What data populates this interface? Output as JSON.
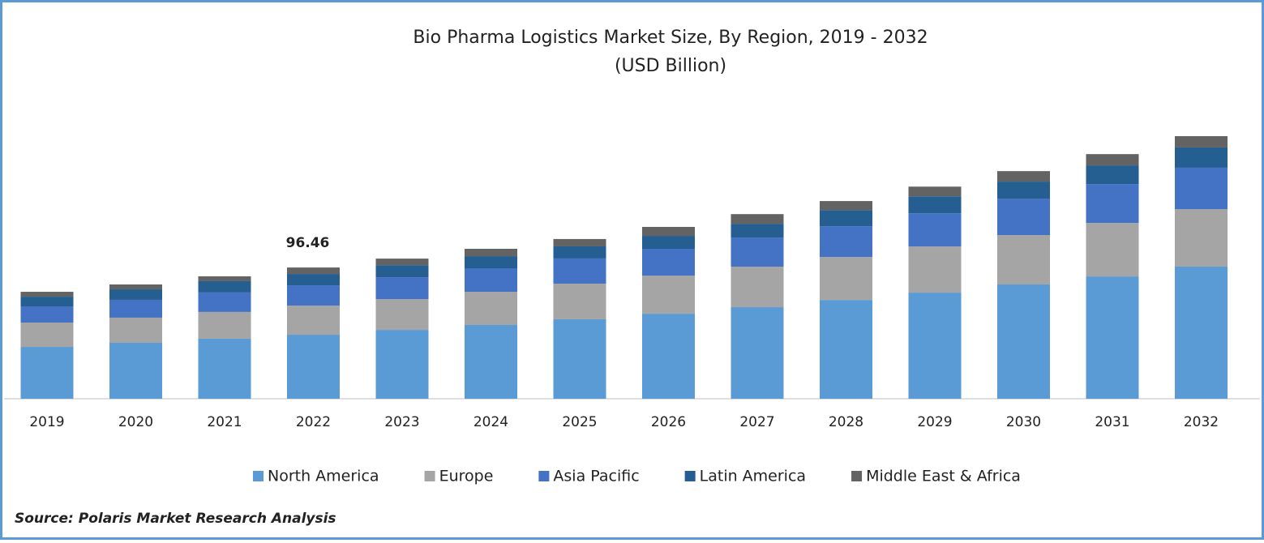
{
  "chart_data": {
    "type": "stacked-bar",
    "title": "Bio Pharma Logistics Market Size, By Region, 2019 - 2032",
    "subtitle": "(USD Billion)",
    "source": "Source: Polaris Market Research Analysis",
    "categories": [
      "2019",
      "2020",
      "2021",
      "2022",
      "2023",
      "2024",
      "2025",
      "2026",
      "2027",
      "2028",
      "2029",
      "2030",
      "2031",
      "2032"
    ],
    "series": [
      {
        "name": "North America",
        "color": "#5b9bd5",
        "values": [
          38.1,
          41.1,
          44.1,
          47.04,
          50.6,
          54.2,
          58.4,
          62.5,
          67.3,
          72.6,
          78.0,
          84.0,
          89.9,
          97.1
        ]
      },
      {
        "name": "Europe",
        "color": "#a5a5a5",
        "values": [
          17.9,
          18.5,
          19.7,
          21.43,
          22.6,
          24.4,
          26.2,
          28.0,
          29.8,
          31.6,
          33.9,
          36.3,
          39.3,
          42.3
        ]
      },
      {
        "name": "Asia Pacific",
        "color": "#4472c4",
        "values": [
          11.9,
          13.1,
          14.3,
          14.89,
          16.1,
          17.3,
          18.5,
          19.7,
          21.4,
          22.6,
          24.4,
          26.8,
          28.6,
          30.4
        ]
      },
      {
        "name": "Latin America",
        "color": "#255e91",
        "values": [
          7.1,
          7.7,
          8.3,
          8.34,
          8.9,
          8.9,
          8.9,
          9.5,
          10.1,
          11.9,
          12.5,
          12.5,
          13.7,
          14.9
        ]
      },
      {
        "name": "Middle East & Africa",
        "color": "#636363",
        "values": [
          3.6,
          3.6,
          3.6,
          4.76,
          4.8,
          5.4,
          5.4,
          6.6,
          7.1,
          6.6,
          7.1,
          7.7,
          8.3,
          8.3
        ]
      }
    ],
    "total_labels": [
      null,
      null,
      null,
      96.46,
      null,
      null,
      null,
      null,
      null,
      null,
      null,
      null,
      null,
      null
    ],
    "legend": "bottom"
  }
}
